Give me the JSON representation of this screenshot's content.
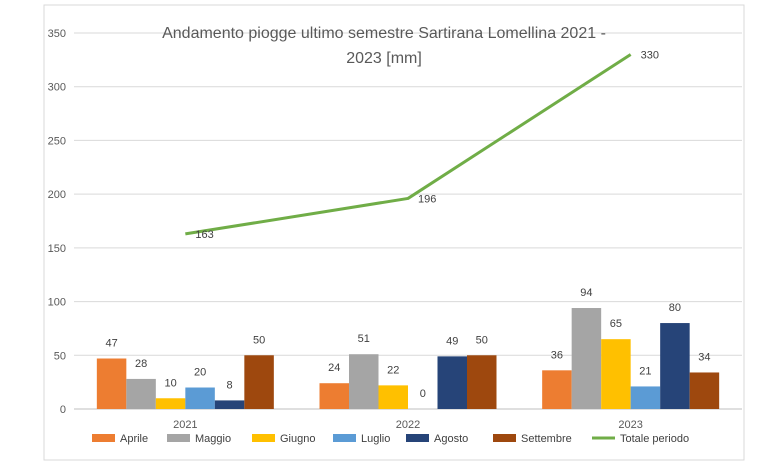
{
  "chart_data": {
    "type": "bar",
    "title_lines": [
      "Andamento piogge ultimo semestre Sartirana Lomellina 2021 -",
      "2023 [mm]"
    ],
    "categories": [
      "2021",
      "2022",
      "2023"
    ],
    "ylim": [
      0,
      350
    ],
    "yticks": [
      "0",
      "50",
      "100",
      "150",
      "200",
      "250",
      "300",
      "350"
    ],
    "grid": true,
    "legend_position": "bottom",
    "series": [
      {
        "name": "Aprile",
        "color": "#ED7D31",
        "values": [
          47,
          24,
          36
        ]
      },
      {
        "name": "Maggio",
        "color": "#A5A5A5",
        "values": [
          28,
          51,
          94
        ]
      },
      {
        "name": "Giugno",
        "color": "#FFC000",
        "values": [
          10,
          22,
          65
        ]
      },
      {
        "name": "Luglio",
        "color": "#5B9BD5",
        "values": [
          20,
          0,
          21
        ]
      },
      {
        "name": "Agosto",
        "color": "#264478",
        "values": [
          8,
          49,
          80
        ]
      },
      {
        "name": "Settembre",
        "color": "#9E480E",
        "values": [
          50,
          50,
          34
        ]
      }
    ],
    "line_series": {
      "name": "Totale periodo",
      "color": "#70AD47",
      "values": [
        163,
        196,
        330
      ]
    }
  }
}
